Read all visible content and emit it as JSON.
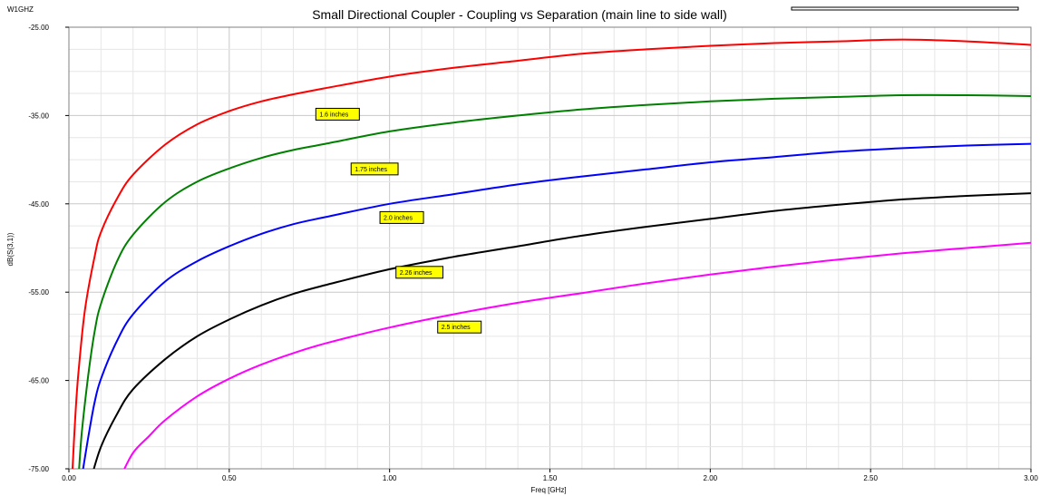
{
  "chart_data": {
    "type": "line",
    "title": "Small Directional Coupler - Coupling vs Separation (main line to side wall)",
    "corner_label": "W1GHZ",
    "xlabel": "Freq [GHz]",
    "ylabel": "dB(S(3,1))",
    "xlim": [
      0,
      3
    ],
    "ylim": [
      -75,
      -25
    ],
    "x_ticks": [
      "0.00",
      "0.50",
      "1.00",
      "1.50",
      "2.00",
      "2.50",
      "3.00"
    ],
    "y_ticks": [
      "-25.00",
      "-35.00",
      "-45.00",
      "-55.00",
      "-65.00",
      "-75.00"
    ],
    "grid": true,
    "series": [
      {
        "name": "1.6 inches",
        "color": "#ff0000",
        "x": [
          0.01,
          0.02,
          0.03,
          0.05,
          0.08,
          0.1,
          0.15,
          0.2,
          0.3,
          0.4,
          0.5,
          0.6,
          0.7,
          0.8,
          1.0,
          1.2,
          1.4,
          1.6,
          1.8,
          2.0,
          2.2,
          2.4,
          2.6,
          2.8,
          3.0
        ],
        "values": [
          -76,
          -69,
          -64,
          -57,
          -51,
          -48.2,
          -44.4,
          -41.7,
          -38.3,
          -36.0,
          -34.5,
          -33.4,
          -32.6,
          -31.9,
          -30.6,
          -29.6,
          -28.8,
          -28.0,
          -27.5,
          -27.1,
          -26.8,
          -26.6,
          -26.4,
          -26.6,
          -27.0
        ]
      },
      {
        "name": "1.75 inches",
        "color": "#008000",
        "x": [
          0.03,
          0.04,
          0.06,
          0.08,
          0.1,
          0.15,
          0.2,
          0.3,
          0.4,
          0.5,
          0.6,
          0.7,
          0.8,
          1.0,
          1.2,
          1.4,
          1.6,
          1.8,
          2.0,
          2.2,
          2.4,
          2.6,
          2.8,
          3.0
        ],
        "values": [
          -76,
          -71,
          -64.5,
          -59.5,
          -56.3,
          -51.5,
          -48.5,
          -44.8,
          -42.5,
          -41.0,
          -39.8,
          -38.9,
          -38.2,
          -36.8,
          -35.8,
          -35.0,
          -34.3,
          -33.8,
          -33.4,
          -33.1,
          -32.9,
          -32.7,
          -32.7,
          -32.8
        ]
      },
      {
        "name": "2.0 inches",
        "color": "#0000ff",
        "x": [
          0.04,
          0.06,
          0.08,
          0.1,
          0.15,
          0.2,
          0.3,
          0.4,
          0.5,
          0.6,
          0.7,
          0.8,
          1.0,
          1.2,
          1.4,
          1.6,
          1.8,
          2.0,
          2.2,
          2.4,
          2.6,
          2.8,
          3.0
        ],
        "values": [
          -76,
          -71.5,
          -67.5,
          -64.8,
          -60.5,
          -57.5,
          -53.8,
          -51.5,
          -49.8,
          -48.4,
          -47.3,
          -46.5,
          -45.0,
          -43.9,
          -42.8,
          -41.9,
          -41.1,
          -40.3,
          -39.7,
          -39.1,
          -38.7,
          -38.4,
          -38.2
        ]
      },
      {
        "name": "2.26 inches",
        "color": "#000000",
        "x": [
          0.07,
          0.1,
          0.15,
          0.2,
          0.3,
          0.4,
          0.5,
          0.6,
          0.7,
          0.8,
          1.0,
          1.2,
          1.4,
          1.6,
          1.8,
          2.0,
          2.2,
          2.4,
          2.6,
          2.8,
          3.0
        ],
        "values": [
          -76,
          -72.5,
          -68.8,
          -66.0,
          -62.6,
          -60.0,
          -58.1,
          -56.5,
          -55.2,
          -54.2,
          -52.4,
          -51.0,
          -49.8,
          -48.6,
          -47.6,
          -46.7,
          -45.8,
          -45.1,
          -44.5,
          -44.1,
          -43.8
        ]
      },
      {
        "name": "2.5 inches",
        "color": "#ff00ff",
        "x": [
          0.16,
          0.2,
          0.25,
          0.3,
          0.4,
          0.5,
          0.6,
          0.7,
          0.8,
          1.0,
          1.2,
          1.4,
          1.6,
          1.8,
          2.0,
          2.2,
          2.4,
          2.6,
          2.8,
          3.0
        ],
        "values": [
          -76,
          -73.2,
          -71.3,
          -69.5,
          -66.8,
          -64.8,
          -63.2,
          -61.9,
          -60.8,
          -59.0,
          -57.5,
          -56.2,
          -55.1,
          -54.0,
          -53.0,
          -52.1,
          -51.3,
          -50.6,
          -50.0,
          -49.4
        ]
      }
    ],
    "annotations": [
      {
        "text": "1.6 inches",
        "x": 0.77,
        "y": -34.8
      },
      {
        "text": "1.75 inches",
        "x": 0.88,
        "y": -41.0
      },
      {
        "text": "2.0 inches",
        "x": 0.97,
        "y": -46.5
      },
      {
        "text": "2.26 inches",
        "x": 1.02,
        "y": -52.7
      },
      {
        "text": "2.5 inches",
        "x": 1.15,
        "y": -58.9
      }
    ]
  }
}
